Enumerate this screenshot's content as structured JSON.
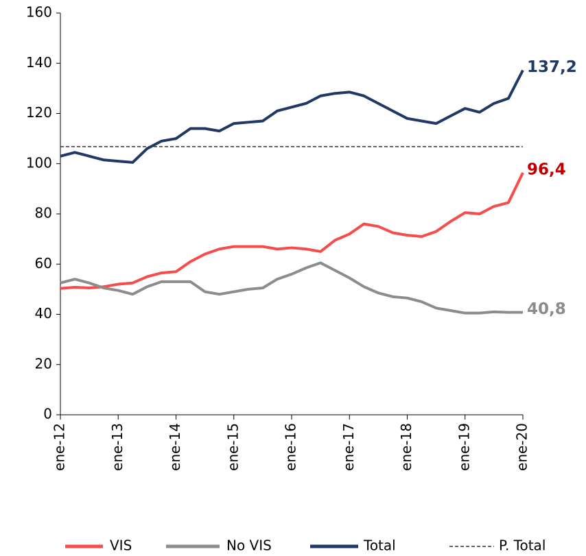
{
  "chart_data": {
    "type": "line",
    "categories": [
      "ene-12",
      null,
      null,
      null,
      "ene-13",
      null,
      null,
      null,
      "ene-14",
      null,
      null,
      null,
      "ene-15",
      null,
      null,
      null,
      "ene-16",
      null,
      null,
      null,
      "ene-17",
      null,
      null,
      null,
      "ene-18",
      null,
      null,
      null,
      "ene-19",
      null,
      null,
      null,
      "ene-20"
    ],
    "series": [
      {
        "name": "VIS",
        "color": "#f54c4c",
        "label_color": "#c00000",
        "values": [
          50.3,
          50.8,
          50.5,
          51,
          52,
          52.5,
          55,
          56.5,
          57,
          61,
          64,
          66,
          67,
          67,
          67,
          66,
          66.5,
          66,
          65,
          69.5,
          72,
          76,
          75,
          72.5,
          71.5,
          71,
          73,
          77,
          80.5,
          80,
          83,
          84.5,
          96.4
        ],
        "value_labels": [
          null,
          null,
          null,
          null,
          null,
          null,
          null,
          null,
          null,
          null,
          null,
          null,
          null,
          null,
          null,
          null,
          null,
          null,
          null,
          null,
          null,
          null,
          null,
          null,
          null,
          null,
          null,
          null,
          null,
          null,
          null,
          null,
          "96,4"
        ]
      },
      {
        "name": "No VIS",
        "color": "#8c8c8c",
        "label_color": "#8c8c8c",
        "values": [
          52.5,
          54,
          52.5,
          50.5,
          49.5,
          48,
          51,
          53,
          53,
          53,
          49,
          48,
          49,
          50,
          50.5,
          54,
          56,
          58.5,
          60.5,
          57.5,
          54.5,
          51,
          48.5,
          47,
          46.5,
          45,
          42.5,
          41.5,
          40.5,
          40.5,
          41,
          40.8,
          40.8
        ],
        "value_labels": [
          null,
          null,
          null,
          null,
          null,
          null,
          null,
          null,
          null,
          null,
          null,
          null,
          null,
          null,
          null,
          null,
          null,
          null,
          null,
          null,
          null,
          null,
          null,
          null,
          null,
          null,
          null,
          null,
          null,
          null,
          null,
          null,
          "40,8"
        ]
      },
      {
        "name": "Total",
        "color": "#1f3864",
        "label_color": "#1f3864",
        "values": [
          103,
          104.5,
          103,
          101.5,
          101,
          100.5,
          106,
          109,
          110,
          114,
          114,
          113,
          116,
          116.5,
          117,
          121,
          122.5,
          124,
          127,
          128,
          128.5,
          127,
          124,
          121,
          118,
          117,
          116,
          119,
          122,
          120.5,
          124,
          126,
          137.2
        ],
        "value_labels": [
          null,
          null,
          null,
          null,
          null,
          null,
          null,
          null,
          null,
          null,
          null,
          null,
          null,
          null,
          null,
          null,
          null,
          null,
          null,
          null,
          null,
          null,
          null,
          null,
          null,
          null,
          null,
          null,
          null,
          null,
          null,
          null,
          "137,2"
        ]
      }
    ],
    "reference_line": {
      "name": "P. Total",
      "value": 106.8,
      "color": "#333333",
      "dashed": true
    },
    "ylim": [
      0,
      160
    ],
    "yticks": [
      0,
      20,
      40,
      60,
      80,
      100,
      120,
      140,
      160
    ]
  }
}
